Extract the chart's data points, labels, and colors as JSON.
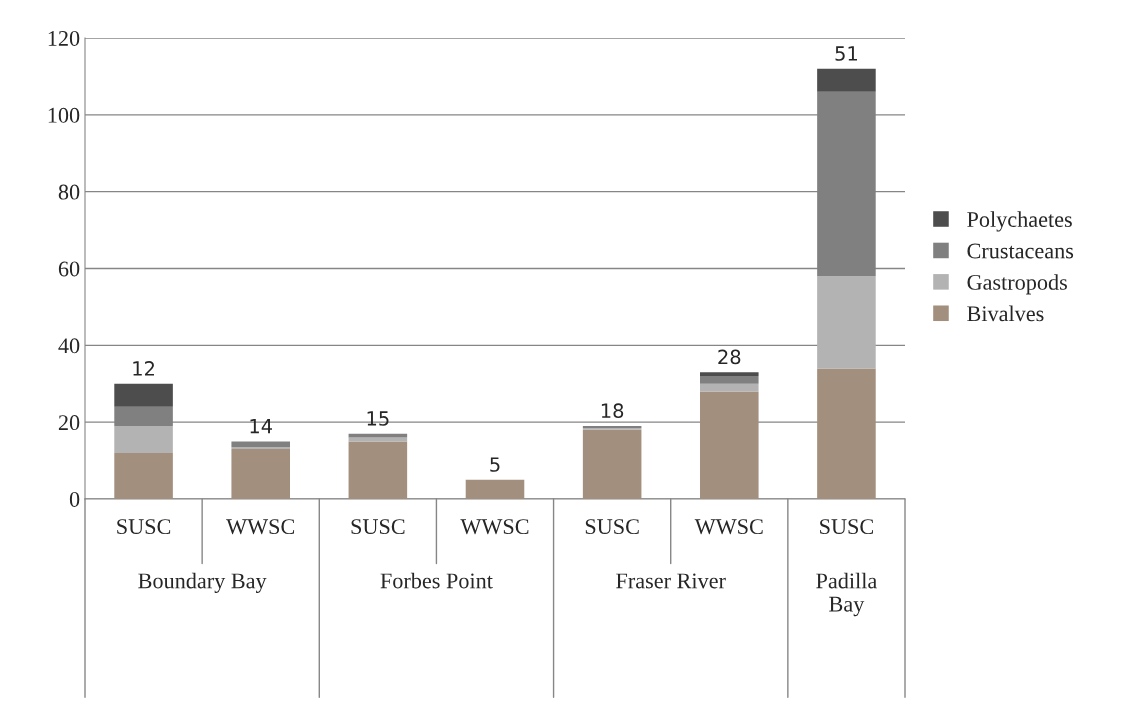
{
  "chart_data": {
    "type": "bar",
    "stacked": true,
    "categories": [
      "SUSC",
      "WWSC",
      "SUSC",
      "WWSC",
      "SUSC",
      "WWSC",
      "SUSC"
    ],
    "annotations": [
      "Boundary Bay",
      "Forbes Point",
      "Fraser River",
      "Padilla Bay",
      {
        "text": "12",
        "y": 30
      },
      {
        "text": "14",
        "y": 15
      },
      {
        "text": "15",
        "y": 17
      },
      {
        "text": "5",
        "y": 5
      },
      {
        "text": "18",
        "y": 19
      },
      {
        "text": "28",
        "y": 33
      },
      {
        "text": "51",
        "y": 112
      }
    ],
    "series": [
      {
        "name": "Bivalves",
        "color": "#a38f7d",
        "values": [
          12,
          13,
          15,
          5,
          18,
          28,
          34
        ]
      },
      {
        "name": "Gastropods",
        "color": "#b3b3b3",
        "values": [
          7,
          0.5,
          1,
          0,
          0.5,
          2,
          24
        ]
      },
      {
        "name": "Crustaceans",
        "color": "#808080",
        "values": [
          5,
          1.5,
          1,
          0,
          0.5,
          2,
          48
        ]
      },
      {
        "name": "Polychaetes",
        "color": "#4d4d4d",
        "values": [
          6,
          0,
          0,
          0,
          0,
          1,
          6
        ]
      }
    ],
    "ylim": [
      0,
      120
    ],
    "yticks": [
      0,
      20,
      40,
      60,
      80,
      100,
      120
    ],
    "grid": "y",
    "legend": "right"
  }
}
